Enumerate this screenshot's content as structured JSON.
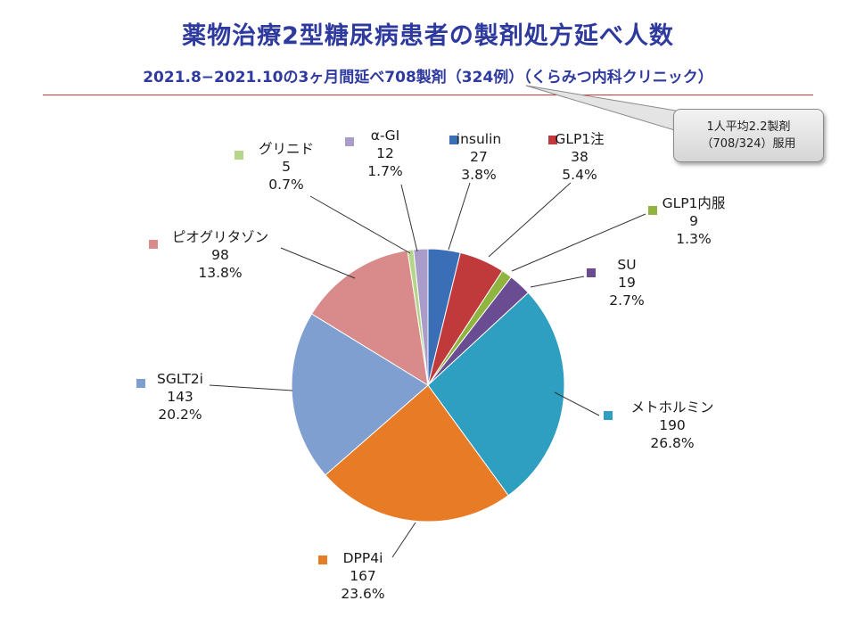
{
  "title": "薬物治療2型糖尿病患者の製剤処方延べ人数",
  "subtitle": "2021.8−2021.10の3ヶ月間延べ708製剤（324例）（くらみつ内科クリニック）",
  "callout": {
    "line1": "1人平均2.2製剤",
    "line2": "（708/324）服用"
  },
  "chart_data": {
    "type": "pie",
    "title": "薬物治療2型糖尿病患者の製剤処方延べ人数",
    "total": 708,
    "slices": [
      {
        "name": "insulin",
        "value": 27,
        "percent": "3.8%",
        "color": "#3a6fb7"
      },
      {
        "name": "GLP1注",
        "value": 38,
        "percent": "5.4%",
        "color": "#c0393b"
      },
      {
        "name": "GLP1内服",
        "value": 9,
        "percent": "1.3%",
        "color": "#8fb43f"
      },
      {
        "name": "SU",
        "value": 19,
        "percent": "2.7%",
        "color": "#6a4c93"
      },
      {
        "name": "メトホルミン",
        "value": 190,
        "percent": "26.8%",
        "color": "#2e9fc0"
      },
      {
        "name": "DPP4i",
        "value": 167,
        "percent": "23.6%",
        "color": "#e87b25"
      },
      {
        "name": "SGLT2i",
        "value": 143,
        "percent": "20.2%",
        "color": "#7f9fd1"
      },
      {
        "name": "ピオグリタゾン",
        "value": 98,
        "percent": "13.8%",
        "color": "#d98a8a"
      },
      {
        "name": "グリニド",
        "value": 5,
        "percent": "0.7%",
        "color": "#b5d68a"
      },
      {
        "name": "α-GI",
        "value": 12,
        "percent": "1.7%",
        "color": "#a99cc9"
      }
    ]
  }
}
